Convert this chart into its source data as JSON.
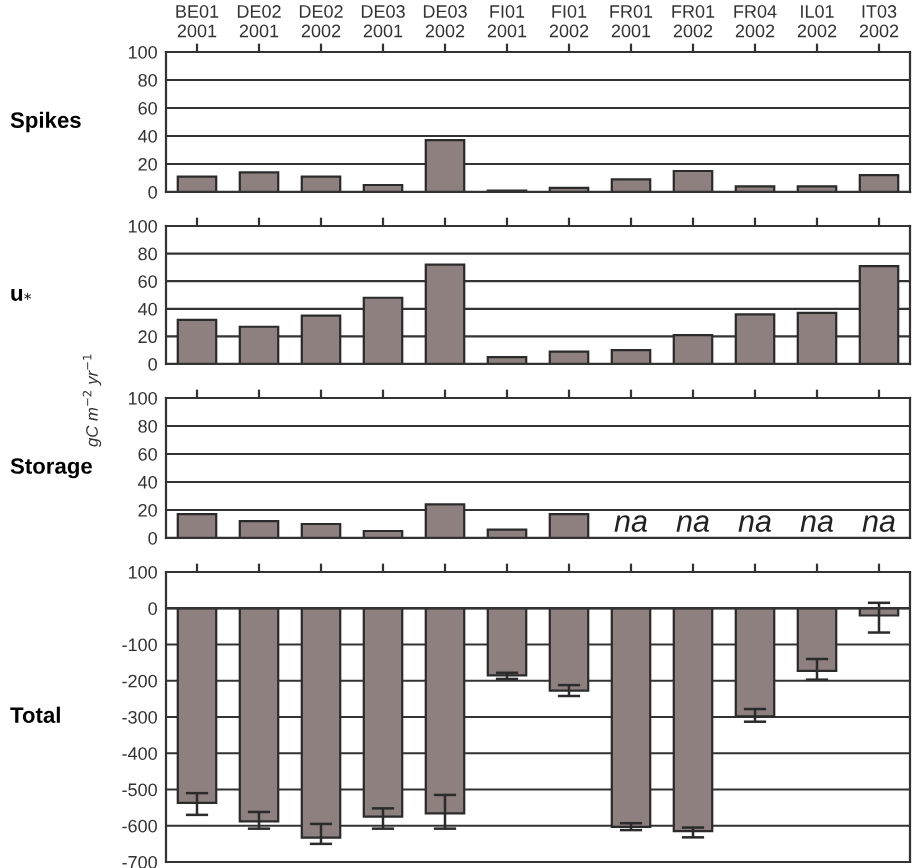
{
  "chart_data": [
    {
      "type": "bar",
      "title": "Spikes",
      "categories": [
        "BE01\n2001",
        "DE02\n2001",
        "DE02\n2002",
        "DE03\n2001",
        "DE03\n2002",
        "FI01\n2001",
        "FI01\n2002",
        "FR01\n2001",
        "FR01\n2002",
        "FR04\n2002",
        "IL01\n2002",
        "IT03\n2002"
      ],
      "values": [
        11,
        14,
        11,
        5,
        37,
        1,
        3,
        9,
        15,
        4,
        4,
        12
      ],
      "color": "#8f8080",
      "ylim": [
        0,
        100
      ],
      "yticks": [
        0,
        20,
        40,
        60,
        80,
        100
      ],
      "grid": "y"
    },
    {
      "type": "bar",
      "title": "u$_{*}$",
      "categories": [
        null,
        null,
        null,
        null,
        null,
        null,
        null,
        null,
        null,
        null,
        null,
        null
      ],
      "values": [
        32,
        27,
        35,
        48,
        72,
        5,
        9,
        10,
        21,
        36,
        37,
        71
      ],
      "color": "#8f8080",
      "ylim": [
        0,
        100
      ],
      "yticks": [
        0,
        20,
        40,
        60,
        80,
        100
      ],
      "grid": "y",
      "tick_labels": "y"
    },
    {
      "type": "bar",
      "title": "Storage",
      "ylabel": "gC m$^{−2}$ yr$^{−1}$",
      "categories": [
        null,
        null,
        null,
        null,
        null,
        null,
        null,
        null,
        null,
        null,
        null,
        null
      ],
      "values": [
        17,
        12,
        10,
        5,
        24,
        6,
        17,
        null,
        null,
        null,
        null,
        null
      ],
      "color": "#8f8080",
      "ylim": [
        0,
        100
      ],
      "yticks": [
        0,
        20,
        40,
        60,
        80,
        100
      ],
      "grid": "y",
      "tick_labels": "y",
      "annotations": [
        "na",
        "na",
        "na",
        "na",
        "na"
      ]
    },
    {
      "type": "bar",
      "title": "Total",
      "categories": [
        null,
        null,
        null,
        null,
        null,
        null,
        null,
        null,
        null,
        null,
        null,
        null
      ],
      "values": [
        -537,
        -588,
        -633,
        -575,
        -566,
        -185,
        -227,
        -603,
        -615,
        -298,
        -173,
        -20
      ],
      "color": "#8f8080",
      "errors": [
        [
          -570,
          -510
        ],
        [
          -608,
          -562
        ],
        [
          -650,
          -595
        ],
        [
          -608,
          -552
        ],
        [
          -608,
          -515
        ],
        [
          -195,
          -178
        ],
        [
          -242,
          -212
        ],
        [
          -612,
          -593
        ],
        [
          -632,
          -605
        ],
        [
          -313,
          -278
        ],
        [
          -197,
          -140
        ],
        [
          -67,
          15
        ]
      ],
      "ylim": [
        -700,
        100
      ],
      "yticks": [
        -700,
        -600,
        -500,
        -400,
        -300,
        -200,
        -100,
        0,
        100
      ],
      "grid": "y",
      "tick_labels": "y"
    }
  ]
}
